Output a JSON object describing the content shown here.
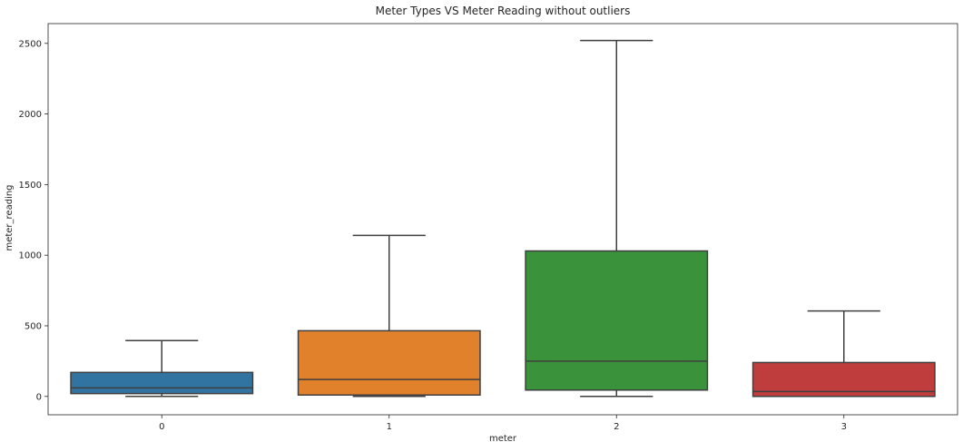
{
  "chart_data": {
    "type": "box",
    "title": "Meter Types VS Meter Reading without outliers",
    "xlabel": "meter",
    "ylabel": "meter_reading",
    "categories": [
      "0",
      "1",
      "2",
      "3"
    ],
    "ylim": [
      -130,
      2640
    ],
    "yticks": [
      0,
      500,
      1000,
      1500,
      2000,
      2500
    ],
    "grid": false,
    "boxes": [
      {
        "category": "0",
        "whisker_low": 0,
        "q1": 20,
        "median": 60,
        "q3": 170,
        "whisker_high": 395,
        "color": "#3274a1"
      },
      {
        "category": "1",
        "whisker_low": 0,
        "q1": 10,
        "median": 120,
        "q3": 465,
        "whisker_high": 1140,
        "color": "#e1812c"
      },
      {
        "category": "2",
        "whisker_low": 0,
        "q1": 45,
        "median": 250,
        "q3": 1030,
        "whisker_high": 2520,
        "color": "#3a923a"
      },
      {
        "category": "3",
        "whisker_low": 0,
        "q1": 0,
        "median": 35,
        "q3": 240,
        "whisker_high": 605,
        "color": "#c03d3e"
      }
    ],
    "line_color": "#3f3f3f"
  }
}
